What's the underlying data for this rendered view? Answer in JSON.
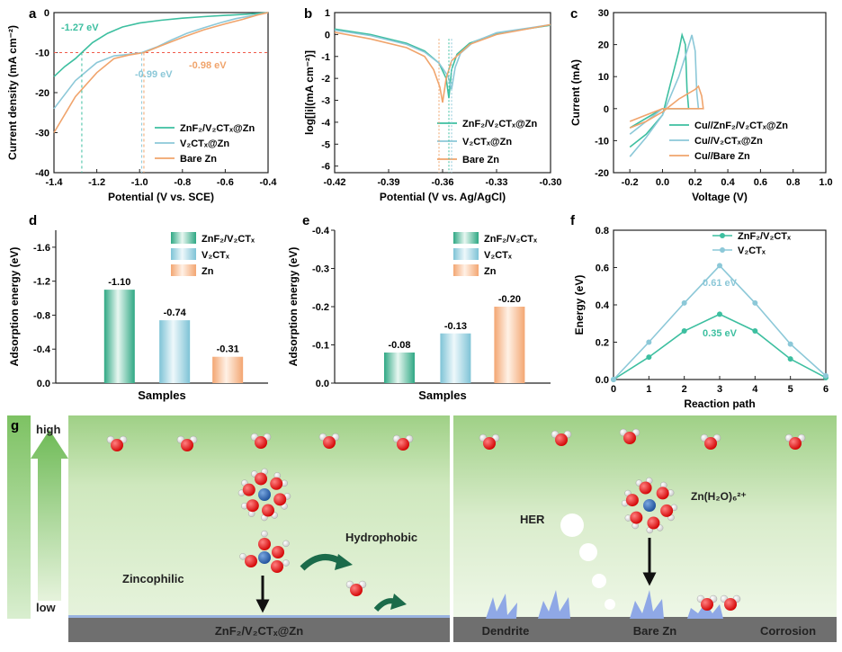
{
  "colors": {
    "znf": "#3dbfa0",
    "v2c": "#8cc8d8",
    "zn": "#f0a46c",
    "red_ref": "#f05a4a",
    "green_dark": "#1b6b4a",
    "bg_green": "#a9d68f",
    "dendrite": "#8fa8e6",
    "substrate": "#707070"
  },
  "chart_data": [
    {
      "id": "a",
      "type": "line",
      "panel_label": "a",
      "xlabel": "Potential (V vs. SCE)",
      "ylabel": "Current density (mA cm⁻²)",
      "xlim": [
        -1.4,
        -0.4
      ],
      "ylim": [
        -40,
        0
      ],
      "xticks": [
        "-1.4",
        "-1.2",
        "-1.0",
        "-0.8",
        "-0.6",
        "-0.4"
      ],
      "yticks": [
        "0",
        "-10",
        "-20",
        "-30",
        "-40"
      ],
      "reference_line_y": -10,
      "series": [
        {
          "name": "ZnF₂/V₂CTₓ@Zn",
          "color_key": "znf",
          "x": [
            -1.4,
            -1.35,
            -1.3,
            -1.27,
            -1.22,
            -1.15,
            -1.08,
            -1.0,
            -0.9,
            -0.8,
            -0.7,
            -0.6,
            -0.5,
            -0.45,
            -0.4
          ],
          "y": [
            -16,
            -13.5,
            -11.5,
            -10,
            -7.5,
            -5.2,
            -3.6,
            -2.6,
            -1.9,
            -1.4,
            -1.0,
            -0.7,
            -0.4,
            -0.2,
            0
          ]
        },
        {
          "name": "V₂CTₓ@Zn",
          "color_key": "v2c",
          "x": [
            -1.4,
            -1.3,
            -1.2,
            -1.12,
            -1.06,
            -0.99,
            -0.92,
            -0.85,
            -0.78,
            -0.7,
            -0.62,
            -0.55,
            -0.48,
            -0.42,
            -0.4
          ],
          "y": [
            -24,
            -17,
            -12.5,
            -10.8,
            -10.5,
            -10,
            -8.6,
            -6.8,
            -5.2,
            -3.8,
            -2.5,
            -1.5,
            -0.8,
            -0.2,
            0
          ]
        },
        {
          "name": "Bare Zn",
          "color_key": "zn",
          "x": [
            -1.4,
            -1.3,
            -1.2,
            -1.12,
            -1.05,
            -0.98,
            -0.9,
            -0.8,
            -0.7,
            -0.6,
            -0.52,
            -0.45,
            -0.4
          ],
          "y": [
            -30,
            -21,
            -15,
            -11.5,
            -10.6,
            -10,
            -8.3,
            -6.2,
            -4.3,
            -2.8,
            -1.7,
            -0.6,
            0
          ]
        }
      ],
      "annotations": [
        {
          "text": "-1.27 eV",
          "color_key": "znf",
          "x": -1.27
        },
        {
          "text": "-0.99 eV",
          "color_key": "v2c",
          "x": -0.99
        },
        {
          "text": "-0.98 eV",
          "color_key": "zn",
          "x": -0.98
        }
      ]
    },
    {
      "id": "b",
      "type": "line",
      "panel_label": "b",
      "xlabel": "Potential (V vs. Ag/AgCl)",
      "ylabel": "log[|i|(mA cm⁻²)]",
      "xlim": [
        -0.42,
        -0.3
      ],
      "ylim": [
        -6.3,
        1
      ],
      "xticks": [
        "-0.42",
        "-0.39",
        "-0.36",
        "-0.33",
        "-0.30"
      ],
      "yticks": [
        "1",
        "0",
        "-1",
        "-2",
        "-3",
        "-4",
        "-5",
        "-6"
      ],
      "series": [
        {
          "name": "ZnF₂/V₂CTₓ@Zn",
          "color_key": "znf",
          "x": [
            -0.42,
            -0.4,
            -0.38,
            -0.37,
            -0.362,
            -0.358,
            -0.3565,
            -0.355,
            -0.352,
            -0.345,
            -0.33,
            -0.31,
            -0.3
          ],
          "y": [
            0.25,
            0.0,
            -0.4,
            -0.75,
            -1.3,
            -2.0,
            -2.9,
            -1.6,
            -0.9,
            -0.4,
            0.05,
            0.3,
            0.42
          ]
        },
        {
          "name": "V₂CTₓ@Zn",
          "color_key": "v2c",
          "x": [
            -0.42,
            -0.4,
            -0.38,
            -0.37,
            -0.362,
            -0.357,
            -0.355,
            -0.353,
            -0.35,
            -0.343,
            -0.33,
            -0.31,
            -0.3
          ],
          "y": [
            0.2,
            -0.05,
            -0.45,
            -0.8,
            -1.3,
            -1.9,
            -2.5,
            -1.5,
            -0.85,
            -0.35,
            0.08,
            0.32,
            0.45
          ]
        },
        {
          "name": "Bare Zn",
          "color_key": "zn",
          "x": [
            -0.42,
            -0.4,
            -0.38,
            -0.37,
            -0.365,
            -0.3615,
            -0.36,
            -0.358,
            -0.355,
            -0.345,
            -0.33,
            -0.31,
            -0.3
          ],
          "y": [
            0.1,
            -0.2,
            -0.6,
            -1.0,
            -1.6,
            -2.4,
            -3.1,
            -2.0,
            -1.2,
            -0.45,
            0.0,
            0.3,
            0.45
          ]
        }
      ]
    },
    {
      "id": "c",
      "type": "line",
      "panel_label": "c",
      "xlabel": "Voltage (V)",
      "ylabel": "Current (mA)",
      "xlim": [
        -0.3,
        1.0
      ],
      "ylim": [
        -20,
        30
      ],
      "xticks": [
        "-0.2",
        "0.0",
        "0.2",
        "0.4",
        "0.6",
        "0.8",
        "1.0"
      ],
      "yticks": [
        "30",
        "20",
        "10",
        "0",
        "-10",
        "-20"
      ],
      "series": [
        {
          "name": "Cu//ZnF₂/V₂CTₓ@Zn",
          "color_key": "znf",
          "x": [
            -0.2,
            -0.1,
            0.0,
            0.05,
            0.1,
            0.12,
            0.14,
            0.15,
            0.16,
            0.1,
            0.05,
            0.0,
            -0.1,
            -0.2
          ],
          "y": [
            -12,
            -8,
            -2,
            8,
            18,
            23,
            20,
            6,
            0,
            0,
            0,
            0,
            -3,
            -6
          ]
        },
        {
          "name": "Cu//V₂CTₓ@Zn",
          "color_key": "v2c",
          "x": [
            -0.2,
            -0.1,
            0.0,
            0.1,
            0.15,
            0.18,
            0.2,
            0.21,
            0.22,
            0.15,
            0.05,
            0.0,
            -0.1,
            -0.2
          ],
          "y": [
            -15,
            -9,
            -2,
            10,
            18,
            23,
            18,
            5,
            0,
            0,
            0,
            0,
            -4,
            -8
          ]
        },
        {
          "name": "Cu//Bare Zn",
          "color_key": "zn",
          "x": [
            -0.2,
            -0.1,
            0.0,
            0.1,
            0.2,
            0.22,
            0.24,
            0.25,
            0.15,
            0.0,
            -0.1,
            -0.2
          ],
          "y": [
            -6,
            -4,
            -1,
            3,
            6,
            7,
            4,
            0,
            0,
            0,
            -2,
            -4
          ]
        }
      ]
    },
    {
      "id": "d",
      "type": "bar",
      "panel_label": "d",
      "xlabel": "Samples",
      "ylabel": "Adsorption energy (eV)",
      "ylim": [
        0,
        -1.8
      ],
      "yticks": [
        "0.0",
        "-0.4",
        "-0.8",
        "-1.2",
        "-1.6"
      ],
      "categories": [
        "ZnF₂/V₂CTₓ",
        "V₂CTₓ",
        "Zn"
      ],
      "values": [
        -1.1,
        -0.74,
        -0.31
      ],
      "value_labels": [
        "-1.10",
        "-0.74",
        "-0.31"
      ],
      "legend": [
        "ZnF₂/V₂CTₓ",
        "V₂CTₓ",
        "Zn"
      ]
    },
    {
      "id": "e",
      "type": "bar",
      "panel_label": "e",
      "xlabel": "Samples",
      "ylabel": "Adsorption energy (eV)",
      "ylim": [
        0,
        -0.4
      ],
      "yticks": [
        "0.0",
        "-0.1",
        "-0.2",
        "-0.3",
        "-0.4"
      ],
      "categories": [
        "ZnF₂/V₂CTₓ",
        "V₂CTₓ",
        "Zn"
      ],
      "values": [
        -0.08,
        -0.13,
        -0.2
      ],
      "value_labels": [
        "-0.08",
        "-0.13",
        "-0.20"
      ],
      "legend": [
        "ZnF₂/V₂CTₓ",
        "V₂CTₓ",
        "Zn"
      ]
    },
    {
      "id": "f",
      "type": "line",
      "panel_label": "f",
      "xlabel": "Reaction path",
      "ylabel": "Energy (eV)",
      "xlim": [
        0,
        6
      ],
      "ylim": [
        0,
        0.8
      ],
      "xticks": [
        "0",
        "1",
        "2",
        "3",
        "4",
        "5",
        "6"
      ],
      "yticks": [
        "0.0",
        "0.2",
        "0.4",
        "0.6",
        "0.8"
      ],
      "series": [
        {
          "name": "ZnF₂/V₂CTₓ",
          "color_key": "znf",
          "x": [
            0,
            1,
            2,
            3,
            4,
            5,
            6
          ],
          "y": [
            0,
            0.12,
            0.26,
            0.35,
            0.26,
            0.11,
            0.01
          ]
        },
        {
          "name": "V₂CTₓ",
          "color_key": "v2c",
          "x": [
            0,
            1,
            2,
            3,
            4,
            5,
            6
          ],
          "y": [
            0,
            0.2,
            0.41,
            0.61,
            0.41,
            0.19,
            0.02
          ]
        }
      ],
      "annotations": [
        {
          "text": "0.61 eV",
          "color_key": "v2c"
        },
        {
          "text": "0.35 eV",
          "color_key": "znf"
        }
      ]
    }
  ],
  "schematic": {
    "panel_label": "g",
    "gradient_high": "high",
    "gradient_low": "low",
    "left": {
      "zincophilic": "Zincophilic",
      "hydrophobic": "Hydrophobic",
      "substrate": "ZnF₂/V₂CTₓ@Zn"
    },
    "right": {
      "her": "HER",
      "complex": "Zn(H₂O)₆²⁺",
      "dendrite": "Dendrite",
      "substrate": "Bare Zn",
      "corrosion": "Corrosion"
    }
  }
}
